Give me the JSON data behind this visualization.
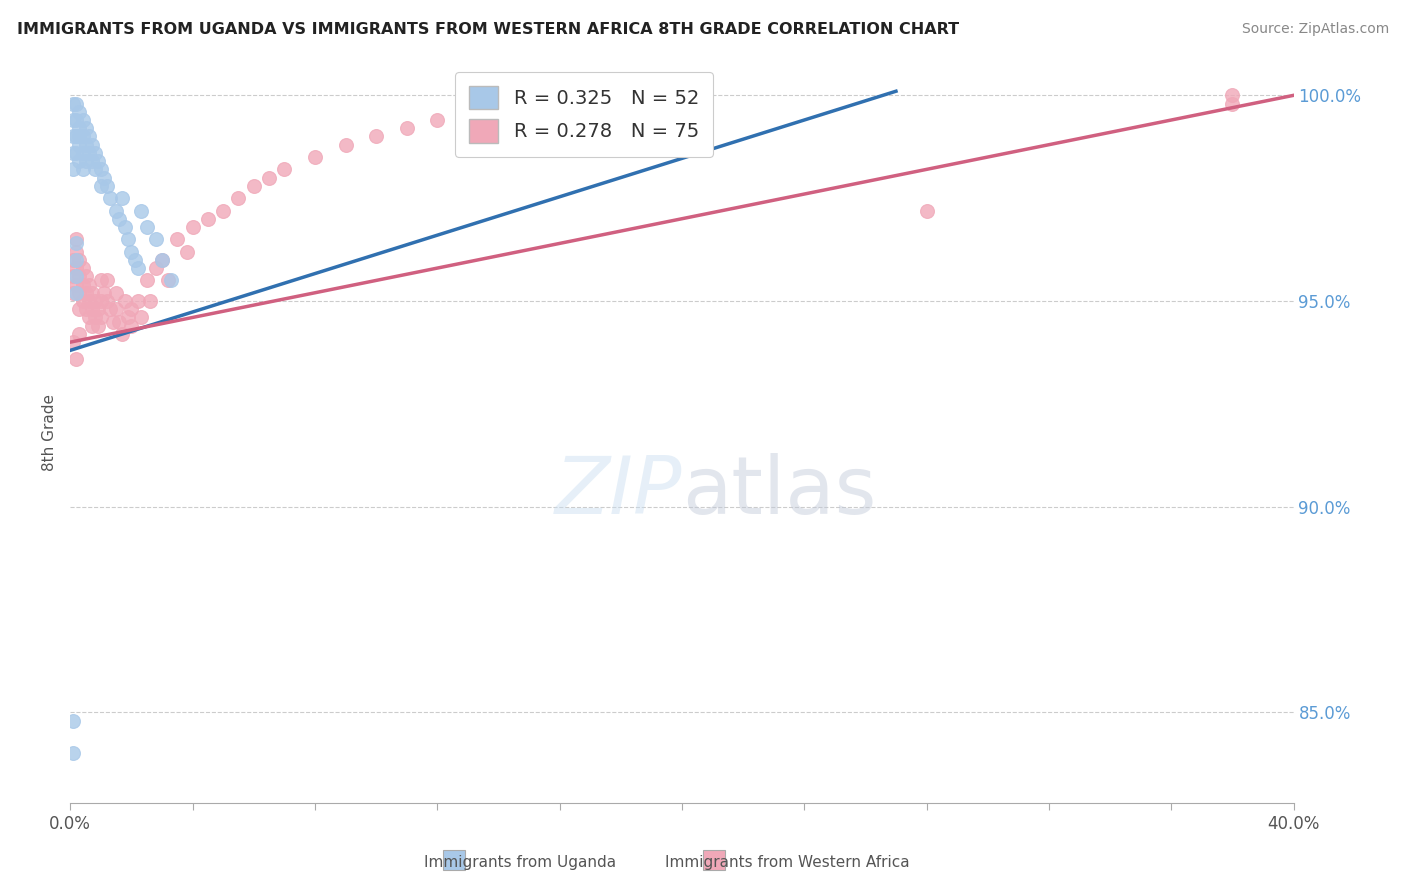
{
  "title": "IMMIGRANTS FROM UGANDA VS IMMIGRANTS FROM WESTERN AFRICA 8TH GRADE CORRELATION CHART",
  "source": "Source: ZipAtlas.com",
  "legend_label1": "Immigrants from Uganda",
  "legend_label2": "Immigrants from Western Africa",
  "ylabel": "8th Grade",
  "xlim": [
    0.0,
    0.4
  ],
  "ylim": [
    0.828,
    1.008
  ],
  "yticks": [
    0.85,
    0.9,
    0.95,
    1.0
  ],
  "ytick_labels": [
    "85.0%",
    "90.0%",
    "95.0%",
    "100.0%"
  ],
  "xtick_left_label": "0.0%",
  "xtick_right_label": "40.0%",
  "R_uganda": 0.325,
  "N_uganda": 52,
  "R_western": 0.278,
  "N_western": 75,
  "blue_color": "#a8c8e8",
  "pink_color": "#f0a8b8",
  "blue_line_color": "#3070b0",
  "pink_line_color": "#d06080",
  "uganda_x": [
    0.001,
    0.001,
    0.001,
    0.001,
    0.001,
    0.002,
    0.002,
    0.002,
    0.002,
    0.003,
    0.003,
    0.003,
    0.003,
    0.004,
    0.004,
    0.004,
    0.004,
    0.005,
    0.005,
    0.005,
    0.006,
    0.006,
    0.007,
    0.007,
    0.008,
    0.008,
    0.009,
    0.01,
    0.01,
    0.011,
    0.012,
    0.013,
    0.015,
    0.016,
    0.017,
    0.018,
    0.019,
    0.02,
    0.021,
    0.022,
    0.023,
    0.025,
    0.028,
    0.03,
    0.033,
    0.001,
    0.001,
    0.002,
    0.002,
    0.002,
    0.002,
    0.003
  ],
  "uganda_y": [
    0.998,
    0.994,
    0.99,
    0.986,
    0.982,
    0.998,
    0.994,
    0.99,
    0.986,
    0.996,
    0.992,
    0.988,
    0.984,
    0.994,
    0.99,
    0.986,
    0.982,
    0.992,
    0.988,
    0.984,
    0.99,
    0.986,
    0.988,
    0.984,
    0.986,
    0.982,
    0.984,
    0.982,
    0.978,
    0.98,
    0.978,
    0.975,
    0.972,
    0.97,
    0.975,
    0.968,
    0.965,
    0.962,
    0.96,
    0.958,
    0.972,
    0.968,
    0.965,
    0.96,
    0.955,
    0.848,
    0.84,
    0.96,
    0.964,
    0.956,
    0.952,
    0.99
  ],
  "western_x": [
    0.001,
    0.001,
    0.001,
    0.002,
    0.002,
    0.002,
    0.002,
    0.003,
    0.003,
    0.003,
    0.003,
    0.004,
    0.004,
    0.004,
    0.005,
    0.005,
    0.005,
    0.006,
    0.006,
    0.006,
    0.007,
    0.007,
    0.007,
    0.008,
    0.008,
    0.009,
    0.009,
    0.01,
    0.01,
    0.01,
    0.011,
    0.012,
    0.012,
    0.013,
    0.014,
    0.015,
    0.015,
    0.016,
    0.017,
    0.018,
    0.019,
    0.02,
    0.02,
    0.022,
    0.023,
    0.025,
    0.026,
    0.028,
    0.03,
    0.032,
    0.035,
    0.038,
    0.04,
    0.045,
    0.05,
    0.055,
    0.06,
    0.065,
    0.07,
    0.08,
    0.09,
    0.1,
    0.11,
    0.12,
    0.13,
    0.14,
    0.16,
    0.18,
    0.2,
    0.001,
    0.002,
    0.003,
    0.28,
    0.38,
    0.38
  ],
  "western_y": [
    0.96,
    0.956,
    0.952,
    0.965,
    0.962,
    0.958,
    0.954,
    0.96,
    0.956,
    0.952,
    0.948,
    0.958,
    0.954,
    0.95,
    0.956,
    0.952,
    0.948,
    0.954,
    0.95,
    0.946,
    0.952,
    0.948,
    0.944,
    0.95,
    0.946,
    0.948,
    0.944,
    0.955,
    0.95,
    0.946,
    0.952,
    0.955,
    0.95,
    0.948,
    0.945,
    0.952,
    0.948,
    0.945,
    0.942,
    0.95,
    0.946,
    0.948,
    0.944,
    0.95,
    0.946,
    0.955,
    0.95,
    0.958,
    0.96,
    0.955,
    0.965,
    0.962,
    0.968,
    0.97,
    0.972,
    0.975,
    0.978,
    0.98,
    0.982,
    0.985,
    0.988,
    0.99,
    0.992,
    0.994,
    0.996,
    0.998,
    1.0,
    1.0,
    0.998,
    0.94,
    0.936,
    0.942,
    0.972,
    0.998,
    1.0
  ],
  "blue_line_x": [
    0.0,
    0.27
  ],
  "blue_line_y": [
    0.938,
    1.001
  ],
  "pink_line_x": [
    0.0,
    0.4
  ],
  "pink_line_y": [
    0.94,
    1.0
  ]
}
